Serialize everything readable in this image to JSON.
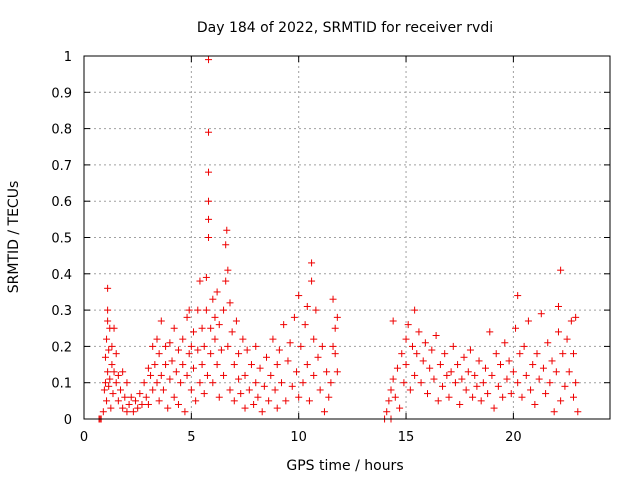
{
  "chart_data": {
    "type": "scatter",
    "title": "Day 184 of 2022, SRMTID for receiver rvdi",
    "xlabel": "GPS time / hours",
    "ylabel": "SRMTID / TECUs",
    "xlim": [
      0,
      24.5
    ],
    "ylim": [
      0,
      1
    ],
    "xticks": [
      0,
      5,
      10,
      15,
      20
    ],
    "xtick_labels": [
      "0",
      "5",
      "10",
      "15",
      "20"
    ],
    "yticks": [
      0,
      0.1,
      0.2,
      0.3,
      0.4,
      0.5,
      0.6,
      0.7,
      0.8,
      0.9,
      1
    ],
    "ytick_labels": [
      "0",
      "0.1",
      "0.2",
      "0.3",
      "0.4",
      "0.5",
      "0.6",
      "0.7",
      "0.8",
      "0.9",
      "1"
    ],
    "grid": true,
    "marker": "+",
    "series": [
      {
        "name": "rvdi",
        "color": "#ee0000",
        "points": [
          [
            0.7,
            0.0
          ],
          [
            0.75,
            0.0
          ],
          [
            0.8,
            0.0
          ],
          [
            0.9,
            0.02
          ],
          [
            0.95,
            0.08
          ],
          [
            1.0,
            0.1
          ],
          [
            1.0,
            0.17
          ],
          [
            1.05,
            0.22
          ],
          [
            1.05,
            0.05
          ],
          [
            1.1,
            0.13
          ],
          [
            1.1,
            0.27
          ],
          [
            1.1,
            0.3
          ],
          [
            1.1,
            0.36
          ],
          [
            1.15,
            0.09
          ],
          [
            1.15,
            0.19
          ],
          [
            1.2,
            0.11
          ],
          [
            1.2,
            0.25
          ],
          [
            1.25,
            0.03
          ],
          [
            1.3,
            0.15
          ],
          [
            1.3,
            0.2
          ],
          [
            1.35,
            0.07
          ],
          [
            1.4,
            0.13
          ],
          [
            1.4,
            0.25
          ],
          [
            1.5,
            0.1
          ],
          [
            1.5,
            0.18
          ],
          [
            1.6,
            0.12
          ],
          [
            1.6,
            0.05
          ],
          [
            1.7,
            0.08
          ],
          [
            1.8,
            0.03
          ],
          [
            1.8,
            0.13
          ],
          [
            1.9,
            0.06
          ],
          [
            2.0,
            0.02
          ],
          [
            2.0,
            0.1
          ],
          [
            2.1,
            0.04
          ],
          [
            2.2,
            0.06
          ],
          [
            2.3,
            0.02
          ],
          [
            2.4,
            0.05
          ],
          [
            2.5,
            0.03
          ],
          [
            2.6,
            0.07
          ],
          [
            2.7,
            0.04
          ],
          [
            2.8,
            0.1
          ],
          [
            2.9,
            0.06
          ],
          [
            3.0,
            0.14
          ],
          [
            3.0,
            0.04
          ],
          [
            3.1,
            0.12
          ],
          [
            3.2,
            0.08
          ],
          [
            3.2,
            0.2
          ],
          [
            3.3,
            0.15
          ],
          [
            3.4,
            0.1
          ],
          [
            3.4,
            0.22
          ],
          [
            3.5,
            0.05
          ],
          [
            3.5,
            0.18
          ],
          [
            3.6,
            0.12
          ],
          [
            3.6,
            0.27
          ],
          [
            3.7,
            0.08
          ],
          [
            3.8,
            0.15
          ],
          [
            3.8,
            0.2
          ],
          [
            3.9,
            0.03
          ],
          [
            4.0,
            0.11
          ],
          [
            4.0,
            0.21
          ],
          [
            4.1,
            0.16
          ],
          [
            4.2,
            0.06
          ],
          [
            4.2,
            0.25
          ],
          [
            4.3,
            0.13
          ],
          [
            4.4,
            0.19
          ],
          [
            4.4,
            0.04
          ],
          [
            4.5,
            0.1
          ],
          [
            4.6,
            0.22
          ],
          [
            4.6,
            0.15
          ],
          [
            4.7,
            0.02
          ],
          [
            4.8,
            0.12
          ],
          [
            4.8,
            0.28
          ],
          [
            4.9,
            0.18
          ],
          [
            4.9,
            0.3
          ],
          [
            5.0,
            0.08
          ],
          [
            5.0,
            0.2
          ],
          [
            5.1,
            0.14
          ],
          [
            5.1,
            0.24
          ],
          [
            5.2,
            0.05
          ],
          [
            5.3,
            0.19
          ],
          [
            5.3,
            0.3
          ],
          [
            5.4,
            0.1
          ],
          [
            5.4,
            0.38
          ],
          [
            5.5,
            0.15
          ],
          [
            5.5,
            0.25
          ],
          [
            5.6,
            0.07
          ],
          [
            5.6,
            0.2
          ],
          [
            5.7,
            0.3
          ],
          [
            5.7,
            0.39
          ],
          [
            5.75,
            0.12
          ],
          [
            5.8,
            0.5
          ],
          [
            5.8,
            0.55
          ],
          [
            5.8,
            0.6
          ],
          [
            5.8,
            0.68
          ],
          [
            5.8,
            0.79
          ],
          [
            5.8,
            0.99
          ],
          [
            5.9,
            0.25
          ],
          [
            5.9,
            0.18
          ],
          [
            6.0,
            0.33
          ],
          [
            6.0,
            0.1
          ],
          [
            6.1,
            0.28
          ],
          [
            6.1,
            0.22
          ],
          [
            6.2,
            0.15
          ],
          [
            6.2,
            0.35
          ],
          [
            6.3,
            0.06
          ],
          [
            6.3,
            0.26
          ],
          [
            6.4,
            0.19
          ],
          [
            6.5,
            0.3
          ],
          [
            6.5,
            0.12
          ],
          [
            6.6,
            0.38
          ],
          [
            6.6,
            0.48
          ],
          [
            6.65,
            0.52
          ],
          [
            6.7,
            0.41
          ],
          [
            6.7,
            0.2
          ],
          [
            6.8,
            0.32
          ],
          [
            6.8,
            0.08
          ],
          [
            6.9,
            0.24
          ],
          [
            7.0,
            0.15
          ],
          [
            7.0,
            0.05
          ],
          [
            7.1,
            0.27
          ],
          [
            7.2,
            0.11
          ],
          [
            7.2,
            0.18
          ],
          [
            7.3,
            0.07
          ],
          [
            7.4,
            0.22
          ],
          [
            7.5,
            0.12
          ],
          [
            7.5,
            0.03
          ],
          [
            7.6,
            0.19
          ],
          [
            7.7,
            0.08
          ],
          [
            7.8,
            0.15
          ],
          [
            7.9,
            0.04
          ],
          [
            8.0,
            0.1
          ],
          [
            8.0,
            0.2
          ],
          [
            8.1,
            0.06
          ],
          [
            8.2,
            0.14
          ],
          [
            8.3,
            0.02
          ],
          [
            8.4,
            0.09
          ],
          [
            8.5,
            0.17
          ],
          [
            8.6,
            0.05
          ],
          [
            8.7,
            0.12
          ],
          [
            8.8,
            0.22
          ],
          [
            8.9,
            0.08
          ],
          [
            9.0,
            0.15
          ],
          [
            9.0,
            0.03
          ],
          [
            9.1,
            0.19
          ],
          [
            9.2,
            0.1
          ],
          [
            9.3,
            0.26
          ],
          [
            9.4,
            0.05
          ],
          [
            9.5,
            0.16
          ],
          [
            9.6,
            0.21
          ],
          [
            9.7,
            0.09
          ],
          [
            9.8,
            0.28
          ],
          [
            9.9,
            0.13
          ],
          [
            10.0,
            0.06
          ],
          [
            10.0,
            0.34
          ],
          [
            10.1,
            0.2
          ],
          [
            10.2,
            0.1
          ],
          [
            10.3,
            0.26
          ],
          [
            10.4,
            0.15
          ],
          [
            10.4,
            0.31
          ],
          [
            10.5,
            0.05
          ],
          [
            10.6,
            0.43
          ],
          [
            10.6,
            0.38
          ],
          [
            10.7,
            0.22
          ],
          [
            10.7,
            0.12
          ],
          [
            10.8,
            0.3
          ],
          [
            10.9,
            0.17
          ],
          [
            11.0,
            0.08
          ],
          [
            11.1,
            0.2
          ],
          [
            11.2,
            0.02
          ],
          [
            11.3,
            0.13
          ],
          [
            11.4,
            0.06
          ],
          [
            11.5,
            0.1
          ],
          [
            11.6,
            0.2
          ],
          [
            11.6,
            0.33
          ],
          [
            11.7,
            0.25
          ],
          [
            11.7,
            0.18
          ],
          [
            11.8,
            0.28
          ],
          [
            11.8,
            0.13
          ],
          [
            14.0,
            0.0
          ],
          [
            14.1,
            0.02
          ],
          [
            14.2,
            0.05
          ],
          [
            14.3,
            0.08
          ],
          [
            14.3,
            0.0
          ],
          [
            14.4,
            0.11
          ],
          [
            14.4,
            0.27
          ],
          [
            14.5,
            0.06
          ],
          [
            14.6,
            0.14
          ],
          [
            14.7,
            0.03
          ],
          [
            14.8,
            0.18
          ],
          [
            14.9,
            0.1
          ],
          [
            15.0,
            0.22
          ],
          [
            15.0,
            0.15
          ],
          [
            15.1,
            0.26
          ],
          [
            15.2,
            0.08
          ],
          [
            15.3,
            0.2
          ],
          [
            15.4,
            0.12
          ],
          [
            15.4,
            0.3
          ],
          [
            15.5,
            0.18
          ],
          [
            15.6,
            0.24
          ],
          [
            15.7,
            0.1
          ],
          [
            15.8,
            0.16
          ],
          [
            15.9,
            0.21
          ],
          [
            16.0,
            0.07
          ],
          [
            16.1,
            0.14
          ],
          [
            16.2,
            0.19
          ],
          [
            16.3,
            0.11
          ],
          [
            16.4,
            0.23
          ],
          [
            16.5,
            0.05
          ],
          [
            16.6,
            0.15
          ],
          [
            16.7,
            0.09
          ],
          [
            16.8,
            0.18
          ],
          [
            16.9,
            0.12
          ],
          [
            17.0,
            0.06
          ],
          [
            17.1,
            0.13
          ],
          [
            17.2,
            0.2
          ],
          [
            17.3,
            0.1
          ],
          [
            17.4,
            0.15
          ],
          [
            17.5,
            0.04
          ],
          [
            17.6,
            0.11
          ],
          [
            17.7,
            0.17
          ],
          [
            17.8,
            0.08
          ],
          [
            17.9,
            0.13
          ],
          [
            18.0,
            0.19
          ],
          [
            18.1,
            0.06
          ],
          [
            18.2,
            0.12
          ],
          [
            18.3,
            0.09
          ],
          [
            18.4,
            0.16
          ],
          [
            18.5,
            0.05
          ],
          [
            18.6,
            0.1
          ],
          [
            18.7,
            0.14
          ],
          [
            18.8,
            0.07
          ],
          [
            18.9,
            0.24
          ],
          [
            19.0,
            0.12
          ],
          [
            19.1,
            0.03
          ],
          [
            19.2,
            0.18
          ],
          [
            19.3,
            0.09
          ],
          [
            19.4,
            0.15
          ],
          [
            19.5,
            0.06
          ],
          [
            19.6,
            0.21
          ],
          [
            19.7,
            0.11
          ],
          [
            19.8,
            0.16
          ],
          [
            19.9,
            0.07
          ],
          [
            20.0,
            0.13
          ],
          [
            20.1,
            0.25
          ],
          [
            20.2,
            0.34
          ],
          [
            20.2,
            0.1
          ],
          [
            20.3,
            0.18
          ],
          [
            20.4,
            0.06
          ],
          [
            20.5,
            0.2
          ],
          [
            20.6,
            0.12
          ],
          [
            20.7,
            0.27
          ],
          [
            20.8,
            0.08
          ],
          [
            20.9,
            0.15
          ],
          [
            21.0,
            0.04
          ],
          [
            21.1,
            0.18
          ],
          [
            21.2,
            0.11
          ],
          [
            21.3,
            0.29
          ],
          [
            21.4,
            0.14
          ],
          [
            21.5,
            0.07
          ],
          [
            21.6,
            0.21
          ],
          [
            21.7,
            0.1
          ],
          [
            21.8,
            0.16
          ],
          [
            21.9,
            0.02
          ],
          [
            22.0,
            0.13
          ],
          [
            22.1,
            0.24
          ],
          [
            22.1,
            0.31
          ],
          [
            22.2,
            0.41
          ],
          [
            22.2,
            0.05
          ],
          [
            22.3,
            0.18
          ],
          [
            22.4,
            0.09
          ],
          [
            22.5,
            0.22
          ],
          [
            22.6,
            0.13
          ],
          [
            22.7,
            0.27
          ],
          [
            22.8,
            0.06
          ],
          [
            22.8,
            0.18
          ],
          [
            22.9,
            0.1
          ],
          [
            22.9,
            0.28
          ],
          [
            23.0,
            0.02
          ]
        ]
      }
    ]
  }
}
